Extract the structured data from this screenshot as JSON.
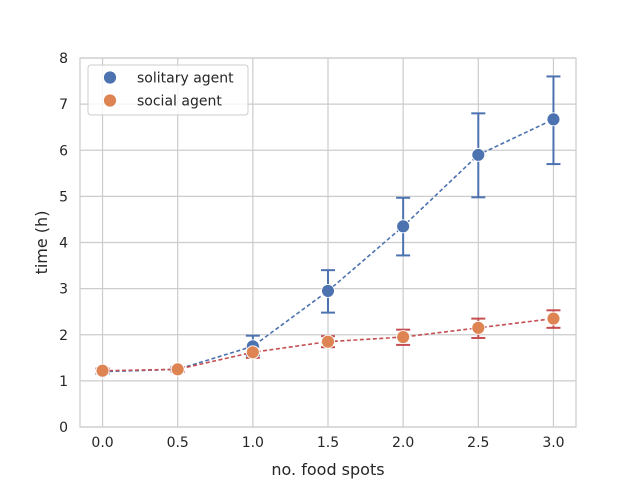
{
  "chart_data": {
    "type": "scatter",
    "title": "",
    "xlabel": "no. food spots",
    "ylabel": "time (h)",
    "xlim": [
      -0.15,
      3.15
    ],
    "ylim": [
      0,
      8
    ],
    "xticks": [
      "0.0",
      "0.5",
      "1.0",
      "1.5",
      "2.0",
      "2.5",
      "3.0"
    ],
    "yticks": [
      "0",
      "1",
      "2",
      "3",
      "4",
      "5",
      "6",
      "7",
      "8"
    ],
    "grid": true,
    "legend_position": "top-left",
    "x": [
      0.0,
      0.5,
      1.0,
      1.5,
      2.0,
      2.5,
      3.0
    ],
    "series": [
      {
        "name": "solitary agent",
        "color": "#4c72b0",
        "line_color": "#4c72b0",
        "values": [
          1.2,
          1.25,
          1.75,
          2.95,
          4.35,
          5.9,
          6.67
        ],
        "err_low": [
          1.15,
          1.2,
          1.55,
          2.48,
          3.72,
          4.98,
          5.7
        ],
        "err_high": [
          1.25,
          1.3,
          1.98,
          3.4,
          4.97,
          6.8,
          7.6
        ]
      },
      {
        "name": "social agent",
        "color": "#dd8452",
        "line_color": "#c44e52",
        "values": [
          1.22,
          1.25,
          1.62,
          1.85,
          1.95,
          2.15,
          2.35
        ],
        "err_low": [
          1.17,
          1.2,
          1.5,
          1.73,
          1.78,
          1.93,
          2.15
        ],
        "err_high": [
          1.27,
          1.3,
          1.74,
          1.97,
          2.11,
          2.35,
          2.53
        ]
      }
    ]
  }
}
